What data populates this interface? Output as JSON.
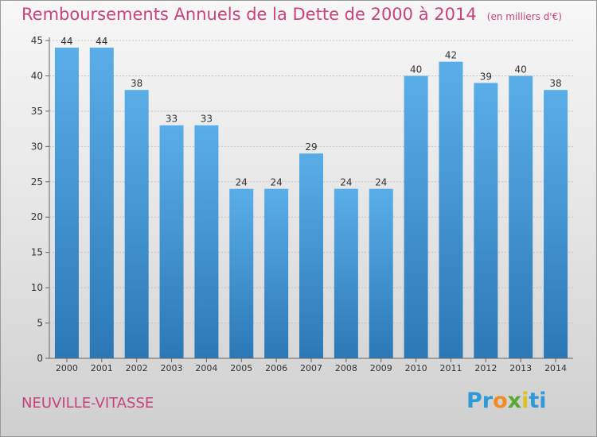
{
  "chart_data": {
    "type": "bar",
    "title": "Remboursements Annuels de la Dette de 2000 à 2014",
    "subtitle": "(en milliers d'€)",
    "categories": [
      "2000",
      "2001",
      "2002",
      "2003",
      "2004",
      "2005",
      "2006",
      "2007",
      "2008",
      "2009",
      "2010",
      "2011",
      "2012",
      "2013",
      "2014"
    ],
    "values": [
      44,
      44,
      38,
      33,
      33,
      24,
      24,
      29,
      24,
      24,
      40,
      42,
      39,
      40,
      38
    ],
    "ylim": [
      0,
      45
    ],
    "yticks": [
      0,
      5,
      10,
      15,
      20,
      25,
      30,
      35,
      40,
      45
    ],
    "grid": true,
    "xlabel": "",
    "ylabel": "",
    "colors": {
      "bar_top": "#5aaee8",
      "bar_bottom": "#2b78b6",
      "title": "#c8437e"
    }
  },
  "footer": {
    "town": "NEUVILLE-VITASSE",
    "logo": "Proxiti"
  }
}
